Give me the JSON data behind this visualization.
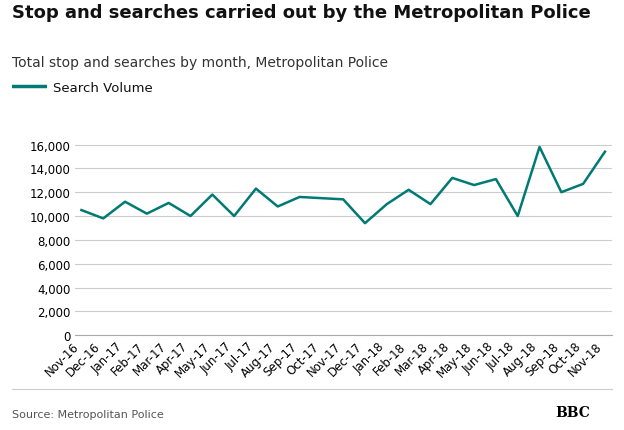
{
  "title": "Stop and searches carried out by the Metropolitan Police",
  "subtitle": "Total stop and searches by month, Metropolitan Police",
  "legend_label": "Search Volume",
  "source": "Source: Metropolitan Police",
  "line_color": "#007a73",
  "background_color": "#ffffff",
  "grid_color": "#cccccc",
  "labels": [
    "Nov-16",
    "Dec-16",
    "Jan-17",
    "Feb-17",
    "Mar-17",
    "Apr-17",
    "May-17",
    "Jun-17",
    "Jul-17",
    "Aug-17",
    "Sep-17",
    "Oct-17",
    "Nov-17",
    "Dec-17",
    "Jan-18",
    "Feb-18",
    "Mar-18",
    "Apr-18",
    "May-18",
    "Jun-18",
    "Jul-18",
    "Aug-18",
    "Sep-18",
    "Oct-18",
    "Nov-18"
  ],
  "values": [
    10500,
    9800,
    11200,
    10200,
    11100,
    10000,
    11800,
    10000,
    12300,
    10800,
    11600,
    11500,
    11400,
    9400,
    11000,
    12200,
    11000,
    13200,
    12600,
    13100,
    10000,
    15800,
    12000,
    12700,
    15400
  ],
  "ylim": [
    0,
    17000
  ],
  "yticks": [
    0,
    2000,
    4000,
    6000,
    8000,
    10000,
    12000,
    14000,
    16000
  ],
  "title_fontsize": 13,
  "subtitle_fontsize": 10,
  "tick_fontsize": 8.5,
  "legend_fontsize": 9.5,
  "line_width": 1.8
}
